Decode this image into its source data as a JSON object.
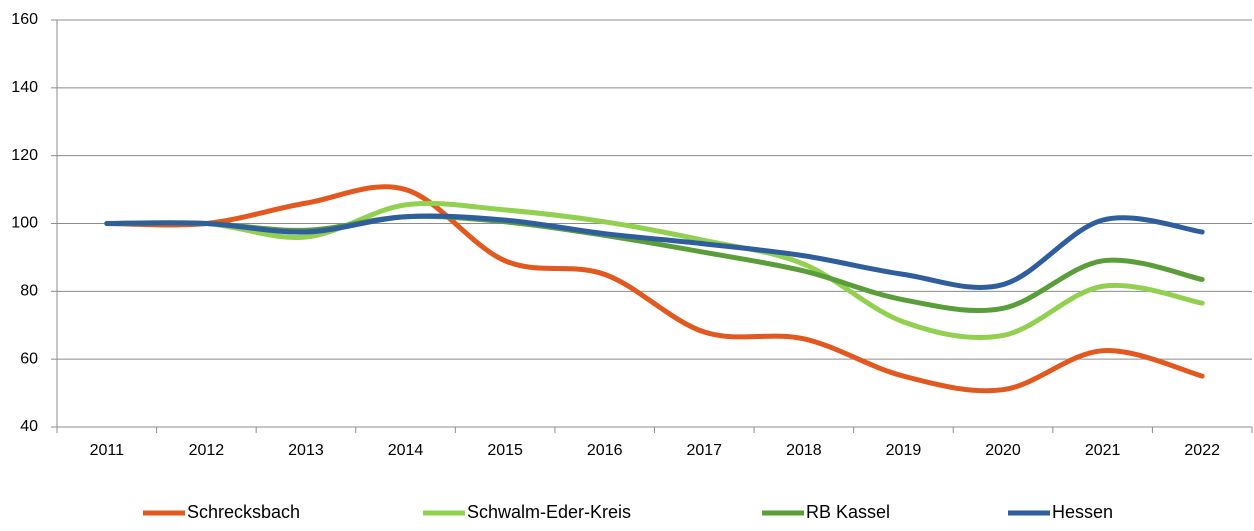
{
  "chart_data": {
    "type": "line",
    "categories": [
      "2011",
      "2012",
      "2013",
      "2014",
      "2015",
      "2016",
      "2017",
      "2018",
      "2019",
      "2020",
      "2021",
      "2022"
    ],
    "series": [
      {
        "name": "Schrecksbach",
        "color": "#e2581f",
        "values": [
          100,
          100,
          106,
          110,
          89,
          85,
          68,
          66,
          55,
          51,
          62.5,
          55
        ]
      },
      {
        "name": "Schwalm-Eder-Kreis",
        "color": "#92d050",
        "values": [
          100,
          100,
          96,
          105.5,
          104,
          100.5,
          95,
          88,
          71,
          67,
          81.5,
          76.5
        ]
      },
      {
        "name": "RB Kassel",
        "color": "#5a9e3a",
        "values": [
          100,
          100,
          98,
          102,
          100.5,
          96.5,
          91.5,
          86,
          77.5,
          75,
          89,
          83.5
        ]
      },
      {
        "name": "Hessen",
        "color": "#2e5e9e",
        "values": [
          100,
          100,
          97.5,
          102,
          101,
          97,
          94,
          90.5,
          85,
          82,
          101,
          97.5
        ]
      }
    ],
    "ylim": [
      40,
      160
    ],
    "yticks": [
      40,
      60,
      80,
      100,
      120,
      140,
      160
    ],
    "grid": true,
    "legend": "bottom"
  }
}
